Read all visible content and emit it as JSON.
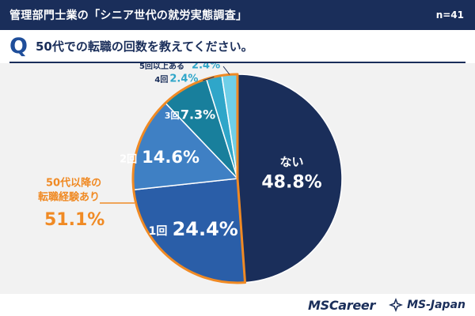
{
  "header": {
    "title": "管理部門士業の「シニア世代の就労実態調査」",
    "sample_size": "n=41"
  },
  "question": {
    "mark": "Q",
    "text": "50代での転職の回数を教えてください。"
  },
  "chart_data": {
    "type": "pie",
    "slices": [
      {
        "label": "ない",
        "value": 48.8,
        "display": "48.8%",
        "color": "#1a2e5a"
      },
      {
        "label": "1回",
        "value": 24.4,
        "display": "24.4%",
        "color": "#2a5ea8"
      },
      {
        "label": "2回",
        "value": 14.6,
        "display": "14.6%",
        "color": "#3f80c4"
      },
      {
        "label": "3回",
        "value": 7.3,
        "display": "7.3%",
        "color": "#187f9c"
      },
      {
        "label": "4回",
        "value": 2.4,
        "display": "2.4%",
        "color": "#2fa6c9"
      },
      {
        "label": "5回以上ある",
        "value": 2.4,
        "display": "2.4%",
        "color": "#6fcfe8"
      }
    ],
    "group_annotation": {
      "line1": "50代以降の",
      "line2": "転職経験あり",
      "value": "51.1%",
      "color": "#f08a24"
    }
  },
  "footer": {
    "logo_mscareer": "MSCareer",
    "logo_msjapan": "MS-Japan"
  }
}
